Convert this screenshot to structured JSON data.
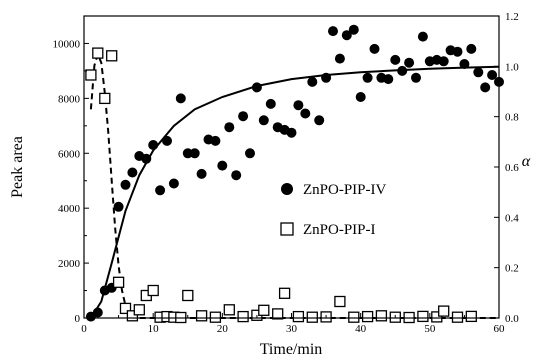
{
  "chart_data": {
    "type": "scatter",
    "xlabel": "Time/min",
    "ylabel_left": "Peak area",
    "ylabel_right": "α",
    "xlim": [
      0,
      60
    ],
    "ylim_left": [
      0,
      11000
    ],
    "ylim_right": [
      0,
      1.2
    ],
    "x_ticks": [
      0,
      10,
      20,
      30,
      40,
      50,
      60
    ],
    "y_ticks_left": [
      0,
      2000,
      4000,
      6000,
      8000,
      10000
    ],
    "y_ticks_right": [
      0.0,
      0.2,
      0.4,
      0.6,
      0.8,
      1.0,
      1.2
    ],
    "y_ticks_right_labels": [
      "0.0",
      "0.2",
      "0.4",
      "0.6",
      "0.8",
      "1.0",
      "1.2"
    ],
    "grid": false,
    "legend_position": "center-right",
    "series": [
      {
        "name": "ZnPO-PIP-IV",
        "marker": "filled-circle",
        "axis": "left",
        "color": "#000000",
        "points": [
          [
            1,
            50
          ],
          [
            2,
            200
          ],
          [
            3,
            1000
          ],
          [
            4,
            1100
          ],
          [
            5,
            4050
          ],
          [
            6,
            4850
          ],
          [
            7,
            5300
          ],
          [
            8,
            5900
          ],
          [
            9,
            5800
          ],
          [
            10,
            6300
          ],
          [
            11,
            4650
          ],
          [
            12,
            6450
          ],
          [
            13,
            4900
          ],
          [
            14,
            8000
          ],
          [
            15,
            6000
          ],
          [
            16,
            6000
          ],
          [
            17,
            5250
          ],
          [
            18,
            6500
          ],
          [
            19,
            6450
          ],
          [
            20,
            5550
          ],
          [
            21,
            6950
          ],
          [
            22,
            5200
          ],
          [
            23,
            7350
          ],
          [
            24,
            6000
          ],
          [
            25,
            8400
          ],
          [
            26,
            7200
          ],
          [
            27,
            7800
          ],
          [
            28,
            6950
          ],
          [
            29,
            6850
          ],
          [
            30,
            6750
          ],
          [
            31,
            7750
          ],
          [
            32,
            7450
          ],
          [
            33,
            8600
          ],
          [
            34,
            7200
          ],
          [
            35,
            8750
          ],
          [
            36,
            10450
          ],
          [
            37,
            9450
          ],
          [
            38,
            10300
          ],
          [
            39,
            10500
          ],
          [
            40,
            8050
          ],
          [
            41,
            8750
          ],
          [
            42,
            9800
          ],
          [
            43,
            8750
          ],
          [
            44,
            8700
          ],
          [
            45,
            9400
          ],
          [
            46,
            9000
          ],
          [
            47,
            9300
          ],
          [
            48,
            8750
          ],
          [
            49,
            10250
          ],
          [
            50,
            9350
          ],
          [
            51,
            9400
          ],
          [
            52,
            9350
          ],
          [
            53,
            9750
          ],
          [
            54,
            9700
          ],
          [
            55,
            9250
          ],
          [
            56,
            9800
          ],
          [
            57,
            8950
          ],
          [
            58,
            8400
          ],
          [
            59,
            8850
          ],
          [
            60,
            8600
          ]
        ]
      },
      {
        "name": "ZnPO-PIP-I",
        "marker": "open-square",
        "axis": "left",
        "color": "#000000",
        "points": [
          [
            1,
            8850
          ],
          [
            2,
            9650
          ],
          [
            3,
            8000
          ],
          [
            4,
            9550
          ],
          [
            5,
            1300
          ],
          [
            6,
            350
          ],
          [
            7,
            80
          ],
          [
            8,
            300
          ],
          [
            9,
            820
          ],
          [
            10,
            1000
          ],
          [
            11,
            30
          ],
          [
            12,
            50
          ],
          [
            13,
            30
          ],
          [
            14,
            20
          ],
          [
            15,
            820
          ],
          [
            17,
            80
          ],
          [
            19,
            30
          ],
          [
            21,
            300
          ],
          [
            23,
            50
          ],
          [
            25,
            100
          ],
          [
            26,
            280
          ],
          [
            28,
            150
          ],
          [
            29,
            900
          ],
          [
            31,
            50
          ],
          [
            33,
            30
          ],
          [
            35,
            40
          ],
          [
            37,
            600
          ],
          [
            39,
            30
          ],
          [
            41,
            50
          ],
          [
            43,
            80
          ],
          [
            45,
            30
          ],
          [
            47,
            20
          ],
          [
            49,
            60
          ],
          [
            51,
            40
          ],
          [
            52,
            250
          ],
          [
            54,
            30
          ],
          [
            56,
            60
          ]
        ]
      }
    ],
    "fit_lines": [
      {
        "for": "ZnPO-PIP-IV",
        "style": "solid",
        "axis": "left",
        "points": [
          [
            1,
            0
          ],
          [
            2.5,
            600
          ],
          [
            4,
            2000
          ],
          [
            6,
            3900
          ],
          [
            8,
            5200
          ],
          [
            10,
            6100
          ],
          [
            13,
            7000
          ],
          [
            16,
            7600
          ],
          [
            20,
            8050
          ],
          [
            25,
            8450
          ],
          [
            30,
            8700
          ],
          [
            35,
            8850
          ],
          [
            40,
            8950
          ],
          [
            45,
            9020
          ],
          [
            50,
            9080
          ],
          [
            55,
            9120
          ],
          [
            60,
            9150
          ]
        ]
      },
      {
        "for": "ZnPO-PIP-I",
        "style": "dashed",
        "axis": "left",
        "points": [
          [
            1,
            7600
          ],
          [
            1.5,
            9200
          ],
          [
            2,
            9600
          ],
          [
            2.5,
            9300
          ],
          [
            3,
            8200
          ],
          [
            3.5,
            6800
          ],
          [
            4,
            5000
          ],
          [
            4.5,
            3300
          ],
          [
            5,
            1900
          ],
          [
            5.5,
            1000
          ],
          [
            6,
            450
          ],
          [
            6.5,
            150
          ],
          [
            7,
            30
          ],
          [
            8,
            0
          ],
          [
            60,
            0
          ]
        ]
      }
    ]
  }
}
